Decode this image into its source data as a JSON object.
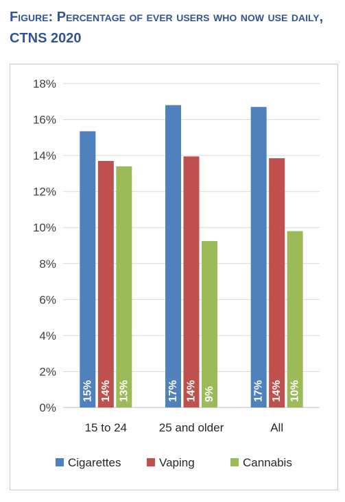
{
  "title": {
    "prefix_caps": "Figure:",
    "prefix_rest": "Percentage of ever users who now use daily,",
    "suffix": "CTNS 2020"
  },
  "chart_data": {
    "type": "bar",
    "categories": [
      "15 to 24",
      "25 and older",
      "All"
    ],
    "series": [
      {
        "name": "Cigarettes",
        "color": "#4f81bd",
        "values": [
          15.35,
          16.8,
          16.7
        ],
        "labels": [
          "15%",
          "17%",
          "17%"
        ]
      },
      {
        "name": "Vaping",
        "color": "#c0504d",
        "values": [
          13.7,
          13.95,
          13.85
        ],
        "labels": [
          "14%",
          "14%",
          "14%"
        ]
      },
      {
        "name": "Cannabis",
        "color": "#9bbb59",
        "values": [
          13.4,
          9.25,
          9.8
        ],
        "labels": [
          "13%",
          "9%",
          "10%"
        ]
      }
    ],
    "ylim": [
      0,
      18
    ],
    "yticks": [
      0,
      2,
      4,
      6,
      8,
      10,
      12,
      14,
      16,
      18
    ],
    "ytick_labels": [
      "0%",
      "2%",
      "4%",
      "6%",
      "8%",
      "10%",
      "12%",
      "14%",
      "16%",
      "18%"
    ],
    "grid": true,
    "legend": "bottom",
    "xlabel": "",
    "ylabel": ""
  }
}
